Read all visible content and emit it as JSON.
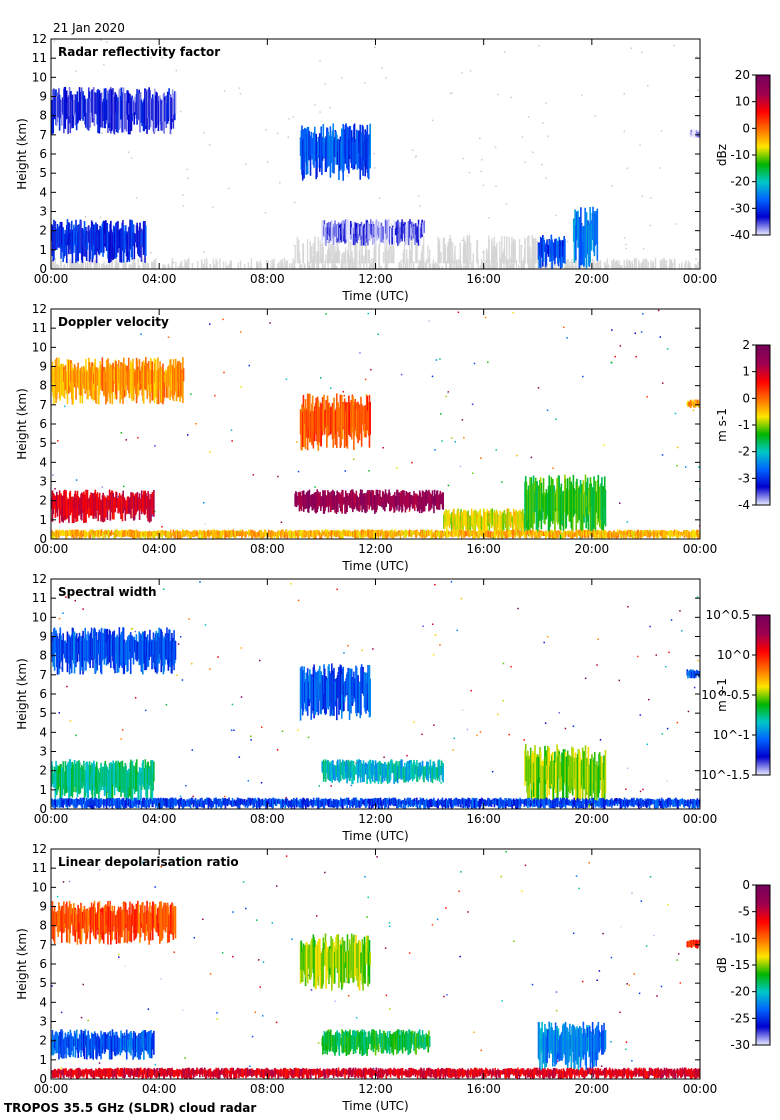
{
  "date": "21 Jan 2020",
  "footer": "TROPOS 35.5 GHz (SLDR) cloud radar",
  "xlabel": "Time (UTC)",
  "ylabel": "Height (km)",
  "x_ticks": [
    "00:00",
    "04:00",
    "08:00",
    "12:00",
    "16:00",
    "20:00",
    "00:00"
  ],
  "y_ticks": [
    "0",
    "1",
    "2",
    "3",
    "4",
    "5",
    "6",
    "7",
    "8",
    "9",
    "10",
    "11",
    "12"
  ],
  "colors": {
    "colormap": [
      "#e6e6ff",
      "#0000cd",
      "#0064ff",
      "#00c8c8",
      "#00b400",
      "#ffe600",
      "#ff6e00",
      "#ff0000",
      "#a00050",
      "#78005a"
    ],
    "clutter": "#d3d3d3"
  },
  "chart_data": [
    {
      "type": "heatmap",
      "title": "Radar reflectivity factor",
      "xlabel": "Time (UTC)",
      "ylabel": "Height (km)",
      "xlim_hours": [
        0,
        24
      ],
      "ylim_km": [
        0,
        12
      ],
      "colorbar": {
        "label": "dBz",
        "ticks": [
          "20",
          "10",
          "0",
          "-10",
          "-20",
          "-30",
          "-40"
        ],
        "range": [
          -40,
          20
        ]
      },
      "regions": [
        {
          "t0": 0.0,
          "t1": 4.6,
          "h0": 7.0,
          "h1": 9.5,
          "v": 0.1
        },
        {
          "t0": 9.2,
          "t1": 11.8,
          "h0": 4.6,
          "h1": 7.6,
          "v": 0.2
        },
        {
          "t0": 0.0,
          "t1": 3.5,
          "h0": 0.3,
          "h1": 2.6,
          "v": 0.15
        },
        {
          "t0": 10.0,
          "t1": 13.8,
          "h0": 1.2,
          "h1": 2.6,
          "v": 0.05
        },
        {
          "t0": 18.0,
          "t1": 19.0,
          "h0": 0.0,
          "h1": 1.8,
          "v": 0.18
        },
        {
          "t0": 19.3,
          "t1": 20.2,
          "h0": 0.0,
          "h1": 3.3,
          "v": 0.25
        },
        {
          "t0": 23.6,
          "t1": 24.0,
          "h0": 6.8,
          "h1": 7.3,
          "v": 0.0
        }
      ],
      "clutter": [
        {
          "t0": 0.0,
          "t1": 24.0,
          "h0": 0.0,
          "h1": 0.6
        },
        {
          "t0": 9.0,
          "t1": 18.0,
          "h0": 0.3,
          "h1": 1.8
        }
      ]
    },
    {
      "type": "heatmap",
      "title": "Doppler velocity",
      "xlabel": "Time (UTC)",
      "ylabel": "Height (km)",
      "xlim_hours": [
        0,
        24
      ],
      "ylim_km": [
        0,
        12
      ],
      "colorbar": {
        "label": "m s-1",
        "ticks": [
          "2",
          "1",
          "0",
          "-1",
          "-2",
          "-3",
          "-4"
        ],
        "range": [
          -4,
          2
        ]
      },
      "regions": [
        {
          "t0": 0.0,
          "t1": 4.9,
          "h0": 7.0,
          "h1": 9.5,
          "v": 0.63
        },
        {
          "t0": 9.2,
          "t1": 11.8,
          "h0": 4.6,
          "h1": 7.6,
          "v": 0.7
        },
        {
          "t0": 0.0,
          "t1": 3.8,
          "h0": 0.8,
          "h1": 2.6,
          "v": 0.82
        },
        {
          "t0": 9.0,
          "t1": 14.5,
          "h0": 1.3,
          "h1": 2.6,
          "v": 0.92
        },
        {
          "t0": 14.5,
          "t1": 17.5,
          "h0": 0.2,
          "h1": 1.6,
          "v": 0.55
        },
        {
          "t0": 17.5,
          "t1": 20.5,
          "h0": 0.0,
          "h1": 3.4,
          "v": 0.45
        },
        {
          "t0": 0.0,
          "t1": 24.0,
          "h0": 0.0,
          "h1": 0.5,
          "v": 0.6
        },
        {
          "t0": 23.5,
          "t1": 24.0,
          "h0": 6.8,
          "h1": 7.3,
          "v": 0.62
        }
      ]
    },
    {
      "type": "heatmap",
      "title": "Spectral width",
      "xlabel": "Time (UTC)",
      "ylabel": "Height (km)",
      "xlim_hours": [
        0,
        24
      ],
      "ylim_km": [
        0,
        12
      ],
      "colorbar": {
        "label": "m s-1",
        "ticks": [
          "10^0.5",
          "10^0",
          "10^-0.5",
          "10^-1",
          "10^-1.5"
        ],
        "range": [
          -1.5,
          0.5
        ]
      },
      "regions": [
        {
          "t0": 0.0,
          "t1": 4.6,
          "h0": 7.0,
          "h1": 9.5,
          "v": 0.2
        },
        {
          "t0": 9.2,
          "t1": 11.8,
          "h0": 4.6,
          "h1": 7.6,
          "v": 0.2
        },
        {
          "t0": 0.0,
          "t1": 3.8,
          "h0": 0.3,
          "h1": 2.6,
          "v": 0.38
        },
        {
          "t0": 10.0,
          "t1": 14.5,
          "h0": 1.3,
          "h1": 2.6,
          "v": 0.32
        },
        {
          "t0": 17.5,
          "t1": 20.5,
          "h0": 0.0,
          "h1": 3.4,
          "v": 0.5
        },
        {
          "t0": 0.0,
          "t1": 24.0,
          "h0": 0.0,
          "h1": 0.6,
          "v": 0.18
        },
        {
          "t0": 23.5,
          "t1": 24.0,
          "h0": 6.8,
          "h1": 7.3,
          "v": 0.2
        }
      ]
    },
    {
      "type": "heatmap",
      "title": "Linear depolarisation ratio",
      "xlabel": "Time (UTC)",
      "ylabel": "Height (km)",
      "xlim_hours": [
        0,
        24
      ],
      "ylim_km": [
        0,
        12
      ],
      "colorbar": {
        "label": "dB",
        "ticks": [
          "0",
          "-5",
          "-10",
          "-15",
          "-20",
          "-25",
          "-30"
        ],
        "range": [
          -30,
          0
        ]
      },
      "regions": [
        {
          "t0": 0.0,
          "t1": 4.6,
          "h0": 7.0,
          "h1": 9.3,
          "v": 0.7
        },
        {
          "t0": 9.2,
          "t1": 11.8,
          "h0": 4.6,
          "h1": 7.6,
          "v": 0.5
        },
        {
          "t0": 0.0,
          "t1": 3.8,
          "h0": 1.0,
          "h1": 2.6,
          "v": 0.2
        },
        {
          "t0": 10.0,
          "t1": 14.0,
          "h0": 1.2,
          "h1": 2.6,
          "v": 0.42
        },
        {
          "t0": 18.0,
          "t1": 20.5,
          "h0": 0.3,
          "h1": 3.0,
          "v": 0.25
        },
        {
          "t0": 0.0,
          "t1": 24.0,
          "h0": 0.0,
          "h1": 0.6,
          "v": 0.82
        },
        {
          "t0": 23.5,
          "t1": 24.0,
          "h0": 6.8,
          "h1": 7.3,
          "v": 0.75
        }
      ]
    }
  ]
}
